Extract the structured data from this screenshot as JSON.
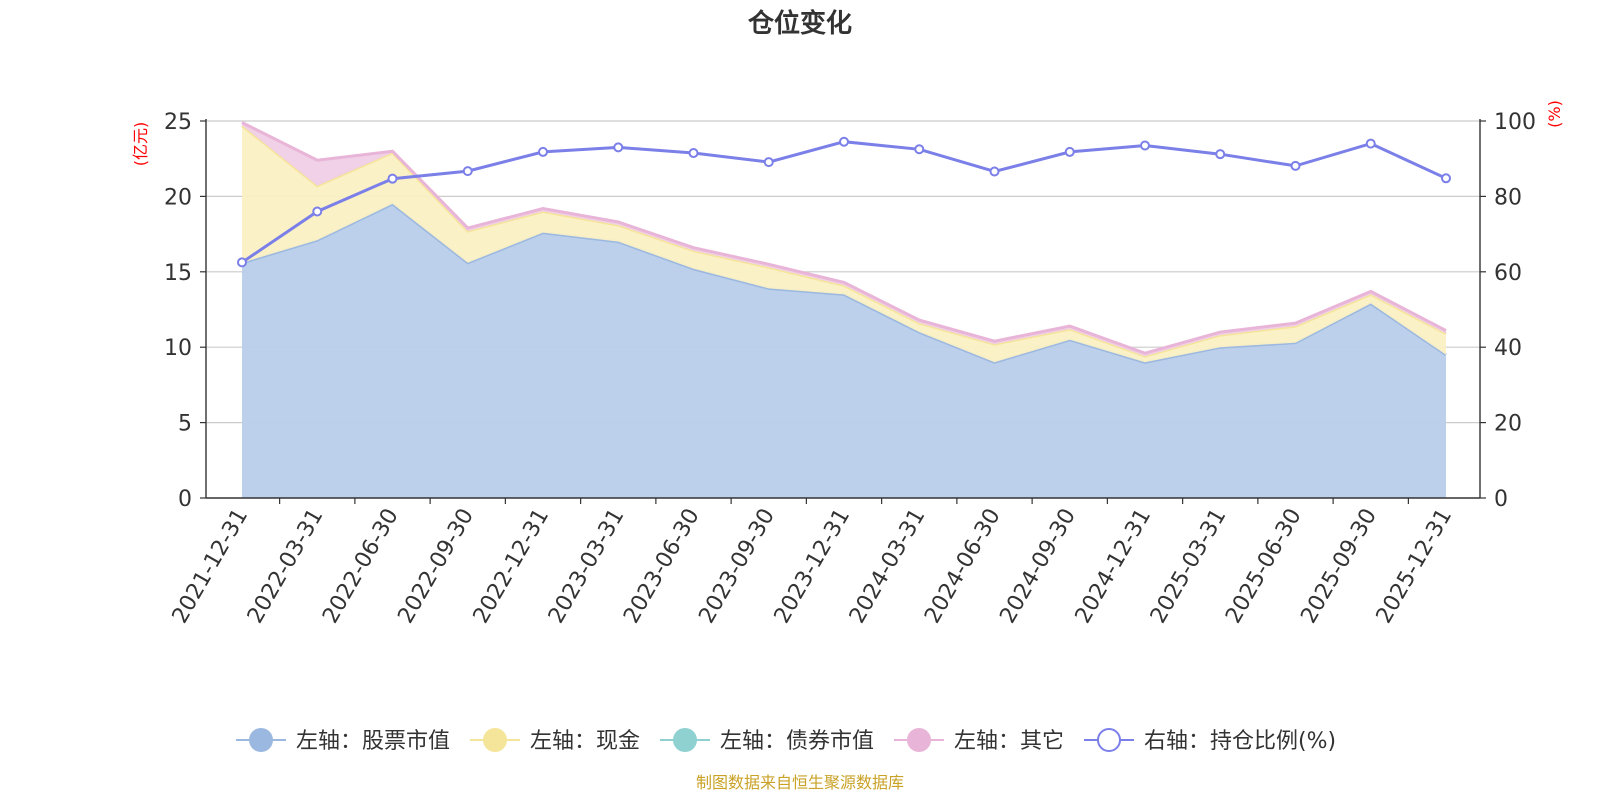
{
  "chart_data": {
    "type": "area",
    "title": "仓位变化",
    "left_axis_label": "(亿元)",
    "right_axis_label": "(%)",
    "left_ylim": [
      0,
      25
    ],
    "left_ticks": [
      0,
      5,
      10,
      15,
      20,
      25
    ],
    "right_ylim": [
      0,
      100
    ],
    "right_ticks": [
      0,
      20,
      40,
      60,
      80,
      100
    ],
    "grid": true,
    "legend_position": "bottom",
    "categories": [
      "2021-12-31",
      "2022-03-31",
      "2022-06-30",
      "2022-09-30",
      "2022-12-31",
      "2023-03-31",
      "2023-06-30",
      "2023-09-30",
      "2023-12-31",
      "2024-03-31",
      "2024-06-30",
      "2024-09-30",
      "2024-12-31",
      "2025-03-31",
      "2025-06-30",
      "2025-09-30",
      "2025-12-31"
    ],
    "series": [
      {
        "name": "左轴：股票市值",
        "axis": "left",
        "kind": "stacked-area",
        "color": "#9bb8e0",
        "fill": "#b9cdea",
        "values": [
          15.6,
          17.1,
          19.5,
          15.6,
          17.6,
          17.0,
          15.2,
          13.9,
          13.5,
          11.0,
          9.0,
          10.5,
          9.0,
          10.0,
          10.3,
          12.9,
          9.5
        ]
      },
      {
        "name": "左轴：现金",
        "axis": "left",
        "kind": "stacked-area",
        "color": "#f5e59a",
        "fill": "#fbf0c4",
        "values": [
          9.1,
          3.6,
          3.4,
          2.1,
          1.4,
          1.1,
          1.2,
          1.4,
          0.6,
          0.6,
          1.2,
          0.7,
          0.4,
          0.8,
          1.1,
          0.6,
          1.4
        ]
      },
      {
        "name": "左轴：债券市值",
        "axis": "left",
        "kind": "stacked-area",
        "color": "#8fd0d0",
        "fill": "#b5e2e2",
        "values": [
          0,
          0,
          0,
          0,
          0,
          0,
          0,
          0,
          0,
          0,
          0,
          0,
          0,
          0,
          0,
          0,
          0
        ]
      },
      {
        "name": "左轴：其它",
        "axis": "left",
        "kind": "stacked-area",
        "color": "#e8b4d8",
        "fill": "#f0cfe6",
        "values": [
          0.2,
          1.7,
          0.1,
          0.2,
          0.2,
          0.2,
          0.2,
          0.2,
          0.2,
          0.2,
          0.2,
          0.2,
          0.2,
          0.2,
          0.2,
          0.2,
          0.2
        ]
      },
      {
        "name": "右轴：持仓比例(%)",
        "axis": "right",
        "kind": "line",
        "color": "#7b7fe8",
        "values": [
          62.5,
          76.0,
          84.7,
          86.7,
          91.8,
          93.0,
          91.5,
          89.1,
          94.5,
          92.5,
          86.6,
          91.8,
          93.5,
          91.2,
          88.1,
          94.0,
          84.8
        ]
      }
    ]
  },
  "footer": {
    "source": "制图数据来自恒生聚源数据库"
  },
  "colors": {
    "title": "#333333",
    "axis_label_red": "#ff0000",
    "tick_text": "#333333",
    "grid": "#cccccc",
    "footer": "#c9a227"
  }
}
